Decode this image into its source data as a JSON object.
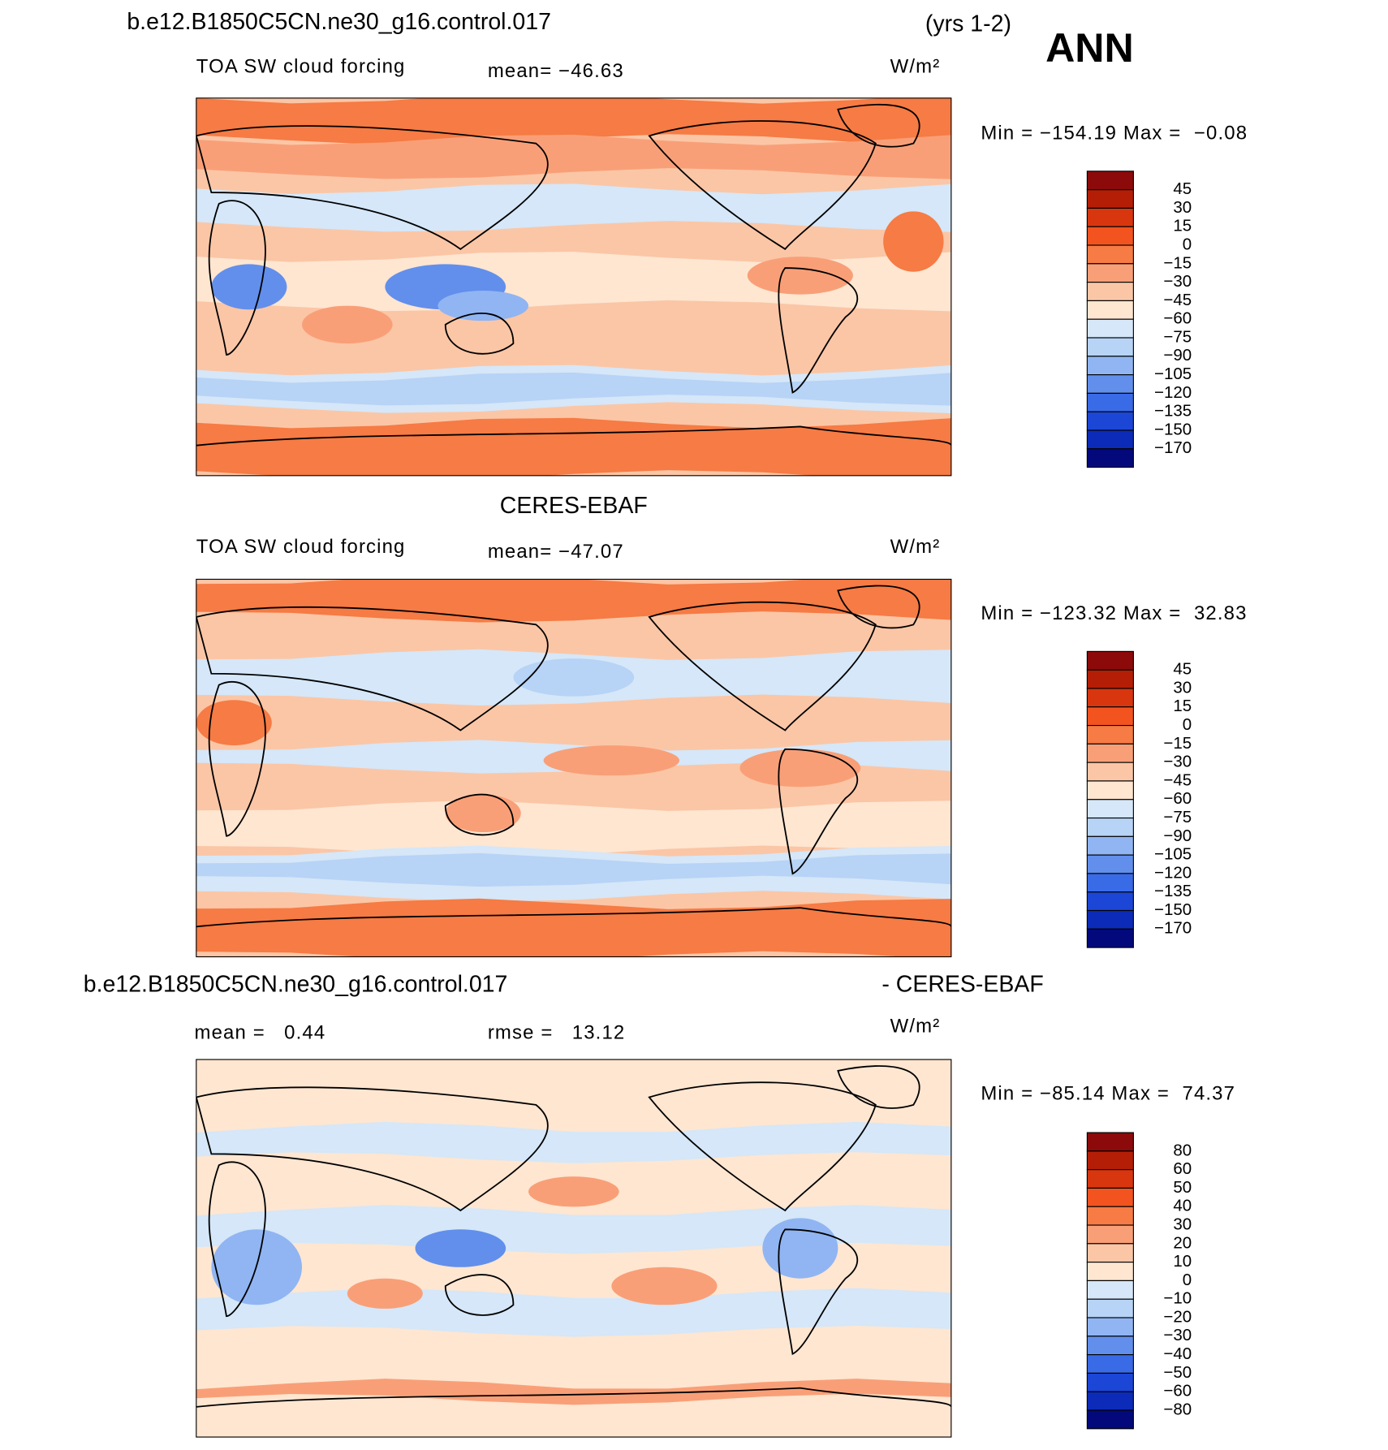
{
  "header": {
    "title": "b.e12.B1850C5CN.ne30_g16.control.017",
    "years": "(yrs 1-2)",
    "season": "ANN"
  },
  "panels": [
    {
      "variable": "TOA SW cloud forcing",
      "mean": "mean= −46.63",
      "units": "W/m²",
      "minmax": "Min = −154.19 Max =  −0.08",
      "colorbar": {
        "labels": [
          "45",
          "30",
          "15",
          "0",
          "−15",
          "−30",
          "−45",
          "−60",
          "−75",
          "−90",
          "−105",
          "−120",
          "−135",
          "−150",
          "−170"
        ],
        "colors": [
          "#8c0a0a",
          "#b51e06",
          "#d8360f",
          "#f2531f",
          "#f67b44",
          "#f99f77",
          "#fbc6a6",
          "#fee6d1",
          "#d5e7f8",
          "#b7d3f6",
          "#90b5f2",
          "#628fec",
          "#3a6be6",
          "#1c46d6",
          "#0c2bb8",
          "#03097b"
        ]
      }
    },
    {
      "title": "CERES-EBAF",
      "variable": "TOA SW cloud forcing",
      "mean": "mean= −47.07",
      "units": "W/m²",
      "minmax": "Min = −123.32 Max =  32.83",
      "colorbar": {
        "labels": [
          "45",
          "30",
          "15",
          "0",
          "−15",
          "−30",
          "−45",
          "−60",
          "−75",
          "−90",
          "−105",
          "−120",
          "−135",
          "−150",
          "−170"
        ],
        "colors": [
          "#8c0a0a",
          "#b51e06",
          "#d8360f",
          "#f2531f",
          "#f67b44",
          "#f99f77",
          "#fbc6a6",
          "#fee6d1",
          "#d5e7f8",
          "#b7d3f6",
          "#90b5f2",
          "#628fec",
          "#3a6be6",
          "#1c46d6",
          "#0c2bb8",
          "#03097b"
        ]
      }
    },
    {
      "title": "b.e12.B1850C5CN.ne30_g16.control.017",
      "title_suffix": "- CERES-EBAF",
      "mean": "mean =   0.44",
      "rmse": "rmse =   13.12",
      "units": "W/m²",
      "minmax": "Min = −85.14 Max =  74.37",
      "colorbar": {
        "labels": [
          "80",
          "60",
          "50",
          "40",
          "30",
          "20",
          "10",
          "0",
          "−10",
          "−20",
          "−30",
          "−40",
          "−50",
          "−60",
          "−80"
        ],
        "colors": [
          "#8c0a0a",
          "#b51e06",
          "#d8360f",
          "#f2531f",
          "#f67b44",
          "#f99f77",
          "#fbc6a6",
          "#fee6d1",
          "#d5e7f8",
          "#b7d3f6",
          "#90b5f2",
          "#628fec",
          "#3a6be6",
          "#1c46d6",
          "#0c2bb8",
          "#03097b"
        ]
      }
    }
  ]
}
